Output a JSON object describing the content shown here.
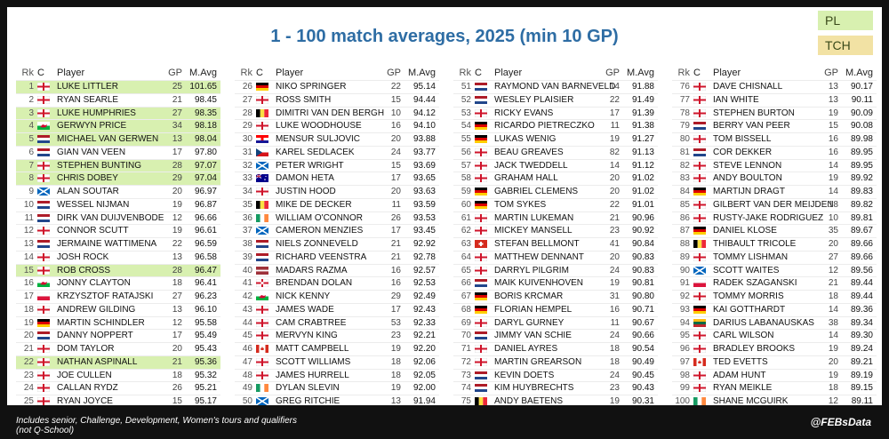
{
  "title": "1 - 100 match averages, 2025 (min 10 GP)",
  "legend": {
    "pl": "PL",
    "tch": "TCH"
  },
  "headers": {
    "rk": "Rk",
    "c": "C",
    "player": "Player",
    "gp": "GP",
    "avg": "M.Avg"
  },
  "footer": {
    "line1": "Includes senior, Challenge, Development, Women's tours and qualifiers",
    "line2": "(not Q-School)",
    "handle": "@FEBsData"
  },
  "colors": {
    "pl": "#d8f0b0",
    "tch": "#f2e2a4",
    "title": "#2e6da4"
  },
  "columns": [
    [
      {
        "rk": "1",
        "flag": "england",
        "player": "LUKE LITTLER",
        "gp": "25",
        "avg": "101.65",
        "tag": "pl"
      },
      {
        "rk": "2",
        "flag": "england",
        "player": "RYAN SEARLE",
        "gp": "21",
        "avg": "98.45",
        "tag": ""
      },
      {
        "rk": "3",
        "flag": "england",
        "player": "LUKE HUMPHRIES",
        "gp": "27",
        "avg": "98.35",
        "tag": "pl"
      },
      {
        "rk": "4",
        "flag": "wales",
        "player": "GERWYN PRICE",
        "gp": "34",
        "avg": "98.18",
        "tag": "pl"
      },
      {
        "rk": "5",
        "flag": "netherlands",
        "player": "MICHAEL VAN GERWEN",
        "gp": "13",
        "avg": "98.04",
        "tag": "pl"
      },
      {
        "rk": "6",
        "flag": "netherlands",
        "player": "GIAN VAN VEEN",
        "gp": "17",
        "avg": "97.80",
        "tag": ""
      },
      {
        "rk": "7",
        "flag": "england",
        "player": "STEPHEN BUNTING",
        "gp": "28",
        "avg": "97.07",
        "tag": "pl"
      },
      {
        "rk": "8",
        "flag": "england",
        "player": "CHRIS DOBEY",
        "gp": "29",
        "avg": "97.04",
        "tag": "pl"
      },
      {
        "rk": "9",
        "flag": "scotland",
        "player": "ALAN SOUTAR",
        "gp": "20",
        "avg": "96.97",
        "tag": ""
      },
      {
        "rk": "10",
        "flag": "netherlands",
        "player": "WESSEL NIJMAN",
        "gp": "19",
        "avg": "96.87",
        "tag": ""
      },
      {
        "rk": "11",
        "flag": "netherlands",
        "player": "DIRK VAN DUIJVENBODE",
        "gp": "12",
        "avg": "96.66",
        "tag": ""
      },
      {
        "rk": "12",
        "flag": "england",
        "player": "CONNOR SCUTT",
        "gp": "19",
        "avg": "96.61",
        "tag": ""
      },
      {
        "rk": "13",
        "flag": "netherlands",
        "player": "JERMAINE WATTIMENA",
        "gp": "22",
        "avg": "96.59",
        "tag": ""
      },
      {
        "rk": "14",
        "flag": "england",
        "player": "JOSH ROCK",
        "gp": "13",
        "avg": "96.58",
        "tag": ""
      },
      {
        "rk": "15",
        "flag": "england",
        "player": "ROB CROSS",
        "gp": "28",
        "avg": "96.47",
        "tag": "pl"
      },
      {
        "rk": "16",
        "flag": "wales",
        "player": "JONNY CLAYTON",
        "gp": "18",
        "avg": "96.41",
        "tag": ""
      },
      {
        "rk": "17",
        "flag": "poland",
        "player": "KRZYSZTOF RATAJSKI",
        "gp": "27",
        "avg": "96.23",
        "tag": ""
      },
      {
        "rk": "18",
        "flag": "england",
        "player": "ANDREW GILDING",
        "gp": "13",
        "avg": "96.10",
        "tag": ""
      },
      {
        "rk": "19",
        "flag": "germany",
        "player": "MARTIN SCHINDLER",
        "gp": "12",
        "avg": "95.58",
        "tag": ""
      },
      {
        "rk": "20",
        "flag": "netherlands",
        "player": "DANNY NOPPERT",
        "gp": "17",
        "avg": "95.49",
        "tag": ""
      },
      {
        "rk": "21",
        "flag": "england",
        "player": "DOM TAYLOR",
        "gp": "20",
        "avg": "95.43",
        "tag": ""
      },
      {
        "rk": "22",
        "flag": "england",
        "player": "NATHAN ASPINALL",
        "gp": "21",
        "avg": "95.36",
        "tag": "pl"
      },
      {
        "rk": "23",
        "flag": "england",
        "player": "JOE CULLEN",
        "gp": "18",
        "avg": "95.32",
        "tag": ""
      },
      {
        "rk": "24",
        "flag": "england",
        "player": "CALLAN RYDZ",
        "gp": "26",
        "avg": "95.21",
        "tag": ""
      },
      {
        "rk": "25",
        "flag": "england",
        "player": "RYAN JOYCE",
        "gp": "15",
        "avg": "95.17",
        "tag": ""
      }
    ],
    [
      {
        "rk": "26",
        "flag": "germany",
        "player": "NIKO SPRINGER",
        "gp": "22",
        "avg": "95.14",
        "tag": ""
      },
      {
        "rk": "27",
        "flag": "england",
        "player": "ROSS SMITH",
        "gp": "15",
        "avg": "94.44",
        "tag": ""
      },
      {
        "rk": "28",
        "flag": "belgium",
        "player": "DIMITRI VAN DEN BERGH",
        "gp": "10",
        "avg": "94.12",
        "tag": ""
      },
      {
        "rk": "29",
        "flag": "england",
        "player": "LUKE WOODHOUSE",
        "gp": "16",
        "avg": "94.10",
        "tag": ""
      },
      {
        "rk": "30",
        "flag": "croatia",
        "player": "MENSUR SULJOVIC",
        "gp": "20",
        "avg": "93.88",
        "tag": ""
      },
      {
        "rk": "31",
        "flag": "czech",
        "player": "KAREL SEDLACEK",
        "gp": "24",
        "avg": "93.77",
        "tag": ""
      },
      {
        "rk": "32",
        "flag": "scotland",
        "player": "PETER WRIGHT",
        "gp": "15",
        "avg": "93.69",
        "tag": ""
      },
      {
        "rk": "33",
        "flag": "australia",
        "player": "DAMON HETA",
        "gp": "17",
        "avg": "93.65",
        "tag": ""
      },
      {
        "rk": "34",
        "flag": "england",
        "player": "JUSTIN HOOD",
        "gp": "20",
        "avg": "93.63",
        "tag": ""
      },
      {
        "rk": "35",
        "flag": "belgium",
        "player": "MIKE DE DECKER",
        "gp": "11",
        "avg": "93.59",
        "tag": ""
      },
      {
        "rk": "36",
        "flag": "ireland",
        "player": "WILLIAM O'CONNOR",
        "gp": "26",
        "avg": "93.53",
        "tag": ""
      },
      {
        "rk": "37",
        "flag": "scotland",
        "player": "CAMERON MENZIES",
        "gp": "17",
        "avg": "93.45",
        "tag": ""
      },
      {
        "rk": "38",
        "flag": "netherlands",
        "player": "NIELS ZONNEVELD",
        "gp": "21",
        "avg": "92.92",
        "tag": ""
      },
      {
        "rk": "39",
        "flag": "netherlands",
        "player": "RICHARD VEENSTRA",
        "gp": "21",
        "avg": "92.78",
        "tag": ""
      },
      {
        "rk": "40",
        "flag": "latvia",
        "player": "MADARS RAZMA",
        "gp": "16",
        "avg": "92.57",
        "tag": ""
      },
      {
        "rk": "41",
        "flag": "nireland",
        "player": "BRENDAN DOLAN",
        "gp": "16",
        "avg": "92.53",
        "tag": ""
      },
      {
        "rk": "42",
        "flag": "wales",
        "player": "NICK KENNY",
        "gp": "29",
        "avg": "92.49",
        "tag": ""
      },
      {
        "rk": "43",
        "flag": "england",
        "player": "JAMES WADE",
        "gp": "17",
        "avg": "92.43",
        "tag": ""
      },
      {
        "rk": "44",
        "flag": "england",
        "player": "CAM CRABTREE",
        "gp": "53",
        "avg": "92.33",
        "tag": ""
      },
      {
        "rk": "45",
        "flag": "england",
        "player": "MERVYN KING",
        "gp": "23",
        "avg": "92.21",
        "tag": ""
      },
      {
        "rk": "46",
        "flag": "canada",
        "player": "MATT CAMPBELL",
        "gp": "19",
        "avg": "92.20",
        "tag": ""
      },
      {
        "rk": "47",
        "flag": "england",
        "player": "SCOTT WILLIAMS",
        "gp": "18",
        "avg": "92.06",
        "tag": ""
      },
      {
        "rk": "48",
        "flag": "england",
        "player": "JAMES HURRELL",
        "gp": "18",
        "avg": "92.05",
        "tag": ""
      },
      {
        "rk": "49",
        "flag": "ireland",
        "player": "DYLAN SLEVIN",
        "gp": "19",
        "avg": "92.00",
        "tag": ""
      },
      {
        "rk": "50",
        "flag": "scotland",
        "player": "GREG RITCHIE",
        "gp": "13",
        "avg": "91.94",
        "tag": ""
      }
    ],
    [
      {
        "rk": "51",
        "flag": "netherlands",
        "player": "RAYMOND VAN BARNEVELD",
        "gp": "14",
        "avg": "91.88",
        "tag": ""
      },
      {
        "rk": "52",
        "flag": "netherlands",
        "player": "WESLEY PLAISIER",
        "gp": "22",
        "avg": "91.49",
        "tag": ""
      },
      {
        "rk": "53",
        "flag": "england",
        "player": "RICKY EVANS",
        "gp": "17",
        "avg": "91.39",
        "tag": ""
      },
      {
        "rk": "54",
        "flag": "germany",
        "player": "RICARDO PIETRECZKO",
        "gp": "11",
        "avg": "91.38",
        "tag": ""
      },
      {
        "rk": "55",
        "flag": "germany",
        "player": "LUKAS WENIG",
        "gp": "19",
        "avg": "91.27",
        "tag": ""
      },
      {
        "rk": "56",
        "flag": "england",
        "player": "BEAU GREAVES",
        "gp": "82",
        "avg": "91.13",
        "tag": ""
      },
      {
        "rk": "57",
        "flag": "england",
        "player": "JACK TWEDDELL",
        "gp": "14",
        "avg": "91.12",
        "tag": ""
      },
      {
        "rk": "58",
        "flag": "england",
        "player": "GRAHAM HALL",
        "gp": "20",
        "avg": "91.02",
        "tag": ""
      },
      {
        "rk": "59",
        "flag": "germany",
        "player": "GABRIEL CLEMENS",
        "gp": "20",
        "avg": "91.02",
        "tag": ""
      },
      {
        "rk": "60",
        "flag": "germany",
        "player": "TOM SYKES",
        "gp": "22",
        "avg": "91.01",
        "tag": ""
      },
      {
        "rk": "61",
        "flag": "england",
        "player": "MARTIN LUKEMAN",
        "gp": "21",
        "avg": "90.96",
        "tag": ""
      },
      {
        "rk": "62",
        "flag": "england",
        "player": "MICKEY MANSELL",
        "gp": "23",
        "avg": "90.92",
        "tag": ""
      },
      {
        "rk": "63",
        "flag": "switzerland",
        "player": "STEFAN BELLMONT",
        "gp": "41",
        "avg": "90.84",
        "tag": ""
      },
      {
        "rk": "64",
        "flag": "england",
        "player": "MATTHEW DENNANT",
        "gp": "20",
        "avg": "90.83",
        "tag": ""
      },
      {
        "rk": "65",
        "flag": "england",
        "player": "DARRYL PILGRIM",
        "gp": "24",
        "avg": "90.83",
        "tag": ""
      },
      {
        "rk": "66",
        "flag": "netherlands",
        "player": "MAIK KUIVENHOVEN",
        "gp": "19",
        "avg": "90.81",
        "tag": ""
      },
      {
        "rk": "67",
        "flag": "germany",
        "player": "BORIS KRCMAR",
        "gp": "31",
        "avg": "90.80",
        "tag": ""
      },
      {
        "rk": "68",
        "flag": "germany",
        "player": "FLORIAN HEMPEL",
        "gp": "16",
        "avg": "90.71",
        "tag": ""
      },
      {
        "rk": "69",
        "flag": "england",
        "player": "DARYL GURNEY",
        "gp": "11",
        "avg": "90.67",
        "tag": ""
      },
      {
        "rk": "70",
        "flag": "netherlands",
        "player": "JIMMY VAN SCHIE",
        "gp": "24",
        "avg": "90.66",
        "tag": ""
      },
      {
        "rk": "71",
        "flag": "england",
        "player": "DANIEL AYRES",
        "gp": "18",
        "avg": "90.54",
        "tag": ""
      },
      {
        "rk": "72",
        "flag": "england",
        "player": "MARTIN GREARSON",
        "gp": "18",
        "avg": "90.49",
        "tag": ""
      },
      {
        "rk": "73",
        "flag": "netherlands",
        "player": "KEVIN DOETS",
        "gp": "24",
        "avg": "90.45",
        "tag": ""
      },
      {
        "rk": "74",
        "flag": "netherlands",
        "player": "KIM HUYBRECHTS",
        "gp": "23",
        "avg": "90.43",
        "tag": ""
      },
      {
        "rk": "75",
        "flag": "belgium",
        "player": "ANDY BAETENS",
        "gp": "19",
        "avg": "90.31",
        "tag": ""
      }
    ],
    [
      {
        "rk": "76",
        "flag": "england",
        "player": "DAVE CHISNALL",
        "gp": "13",
        "avg": "90.17",
        "tag": ""
      },
      {
        "rk": "77",
        "flag": "england",
        "player": "IAN WHITE",
        "gp": "13",
        "avg": "90.11",
        "tag": ""
      },
      {
        "rk": "78",
        "flag": "england",
        "player": "STEPHEN BURTON",
        "gp": "19",
        "avg": "90.09",
        "tag": ""
      },
      {
        "rk": "79",
        "flag": "netherlands",
        "player": "BERRY VAN PEER",
        "gp": "15",
        "avg": "90.08",
        "tag": ""
      },
      {
        "rk": "80",
        "flag": "england",
        "player": "TOM BISSELL",
        "gp": "16",
        "avg": "89.98",
        "tag": ""
      },
      {
        "rk": "81",
        "flag": "netherlands",
        "player": "COR DEKKER",
        "gp": "16",
        "avg": "89.95",
        "tag": ""
      },
      {
        "rk": "82",
        "flag": "england",
        "player": "STEVE LENNON",
        "gp": "14",
        "avg": "89.95",
        "tag": ""
      },
      {
        "rk": "83",
        "flag": "england",
        "player": "ANDY BOULTON",
        "gp": "19",
        "avg": "89.92",
        "tag": ""
      },
      {
        "rk": "84",
        "flag": "germany",
        "player": "MARTIJN DRAGT",
        "gp": "14",
        "avg": "89.83",
        "tag": ""
      },
      {
        "rk": "85",
        "flag": "england",
        "player": "GILBERT VAN DER MEIJDEN",
        "gp": "18",
        "avg": "89.82",
        "tag": ""
      },
      {
        "rk": "86",
        "flag": "england",
        "player": "RUSTY-JAKE RODRIGUEZ",
        "gp": "10",
        "avg": "89.81",
        "tag": ""
      },
      {
        "rk": "87",
        "flag": "germany",
        "player": "DANIEL KLOSE",
        "gp": "35",
        "avg": "89.67",
        "tag": ""
      },
      {
        "rk": "88",
        "flag": "belgium",
        "player": "THIBAULT TRICOLE",
        "gp": "20",
        "avg": "89.66",
        "tag": ""
      },
      {
        "rk": "89",
        "flag": "england",
        "player": "TOMMY LISHMAN",
        "gp": "27",
        "avg": "89.66",
        "tag": ""
      },
      {
        "rk": "90",
        "flag": "scotland",
        "player": "SCOTT WAITES",
        "gp": "12",
        "avg": "89.56",
        "tag": ""
      },
      {
        "rk": "91",
        "flag": "poland",
        "player": "RADEK SZAGANSKI",
        "gp": "21",
        "avg": "89.44",
        "tag": ""
      },
      {
        "rk": "92",
        "flag": "england",
        "player": "TOMMY MORRIS",
        "gp": "18",
        "avg": "89.44",
        "tag": ""
      },
      {
        "rk": "93",
        "flag": "germany",
        "player": "KAI GOTTHARDT",
        "gp": "14",
        "avg": "89.36",
        "tag": ""
      },
      {
        "rk": "94",
        "flag": "lithuania",
        "player": "DARIUS LABANAUSKAS",
        "gp": "38",
        "avg": "89.34",
        "tag": ""
      },
      {
        "rk": "95",
        "flag": "england",
        "player": "CARL WILSON",
        "gp": "14",
        "avg": "89.30",
        "tag": ""
      },
      {
        "rk": "96",
        "flag": "england",
        "player": "BRADLEY BROOKS",
        "gp": "19",
        "avg": "89.24",
        "tag": ""
      },
      {
        "rk": "97",
        "flag": "canada",
        "player": "TED EVETTS",
        "gp": "20",
        "avg": "89.21",
        "tag": ""
      },
      {
        "rk": "98",
        "flag": "england",
        "player": "ADAM HUNT",
        "gp": "19",
        "avg": "89.19",
        "tag": ""
      },
      {
        "rk": "99",
        "flag": "england",
        "player": "RYAN MEIKLE",
        "gp": "18",
        "avg": "89.15",
        "tag": ""
      },
      {
        "rk": "100",
        "flag": "ireland",
        "player": "SHANE MCGUIRK",
        "gp": "12",
        "avg": "89.11",
        "tag": ""
      }
    ]
  ]
}
